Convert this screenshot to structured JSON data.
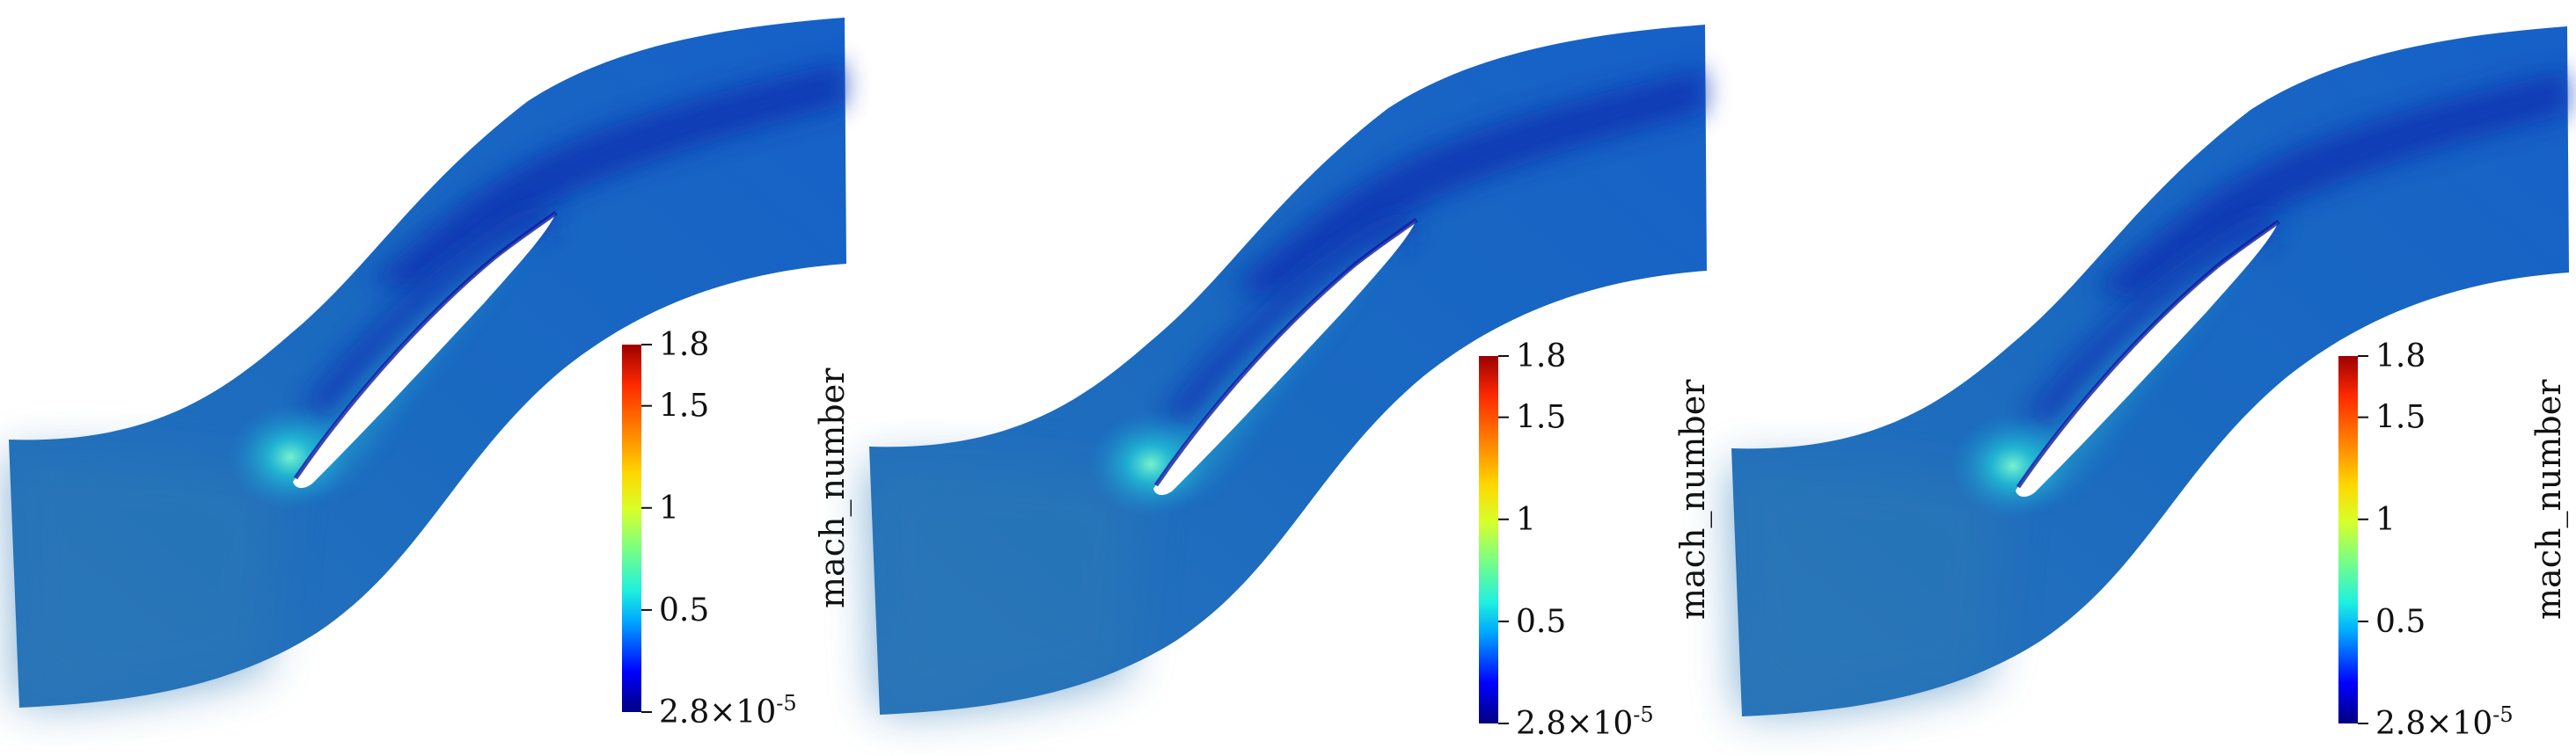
{
  "figure": {
    "panels": [
      {
        "id": "left",
        "colorbar_title": "mach_number"
      },
      {
        "id": "middle",
        "colorbar_title": "mach_number"
      },
      {
        "id": "right",
        "colorbar_title": "mach_number"
      }
    ],
    "colorbar": {
      "ticks": [
        {
          "value": 1.8,
          "label": "1.8"
        },
        {
          "value": 1.5,
          "label": "1.5"
        },
        {
          "value": 1.0,
          "label": "1"
        },
        {
          "value": 0.5,
          "label": "0.5"
        }
      ],
      "min_mantissa": "2.8",
      "min_exponent": "-5",
      "range": [
        2.8e-05,
        1.8
      ],
      "colors": [
        "#00007f",
        "#0000ff",
        "#00aaff",
        "#1ef0e0",
        "#7fff7f",
        "#d8ff2a",
        "#ffd700",
        "#ff7f00",
        "#ff2a00",
        "#9c0000"
      ]
    },
    "field": {
      "base": "#1662b8",
      "inlet": "#2a74b8",
      "suction_light": "#1ea5c8",
      "wake_dark": "#0a2db8"
    }
  }
}
